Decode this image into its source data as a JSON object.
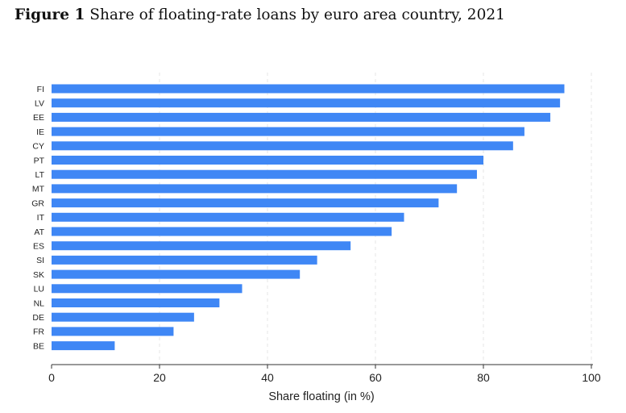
{
  "figure": {
    "label": "Figure 1",
    "title": "Share of floating-rate loans by euro area country, 2021"
  },
  "chart_data": {
    "type": "bar",
    "orientation": "horizontal",
    "title": "Figure 1 Share of floating-rate loans by euro area country, 2021",
    "xlabel": "Share floating (in %)",
    "ylabel": "",
    "xlim": [
      0,
      100
    ],
    "xticks": [
      0,
      20,
      40,
      60,
      80,
      100
    ],
    "grid": "vertical dashed",
    "bar_color": "#3f87f5",
    "categories": [
      "FI",
      "LV",
      "EE",
      "IE",
      "CY",
      "PT",
      "LT",
      "MT",
      "GR",
      "IT",
      "AT",
      "ES",
      "SI",
      "SK",
      "LU",
      "NL",
      "DE",
      "FR",
      "BE"
    ],
    "values": [
      95.0,
      94.2,
      92.4,
      87.6,
      85.5,
      80.0,
      78.8,
      75.1,
      71.7,
      65.3,
      63.0,
      55.4,
      49.2,
      46.0,
      35.3,
      31.1,
      26.4,
      22.6,
      11.7
    ]
  }
}
